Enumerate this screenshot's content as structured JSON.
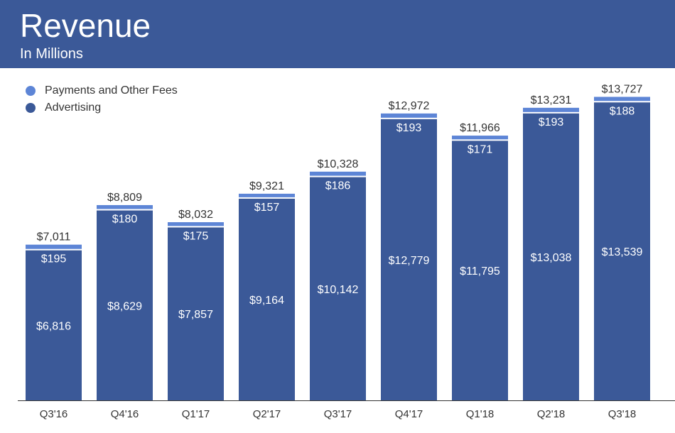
{
  "header": {
    "title": "Revenue",
    "subtitle": "In Millions"
  },
  "colors": {
    "header_bg": "#3b5998",
    "advertising": "#3b5998",
    "payments": "#5d85d6",
    "baseline": "#333333"
  },
  "chart_data": {
    "type": "bar",
    "stacked": true,
    "categories": [
      "Q3'16",
      "Q4'16",
      "Q1'17",
      "Q2'17",
      "Q3'17",
      "Q4'17",
      "Q1'18",
      "Q2'18",
      "Q3'18"
    ],
    "series": [
      {
        "name": "Advertising",
        "values": [
          6816,
          8629,
          7857,
          9164,
          10142,
          12779,
          11795,
          13038,
          13539
        ],
        "labels": [
          "$6,816",
          "$8,629",
          "$7,857",
          "$9,164",
          "$10,142",
          "$12,779",
          "$11,795",
          "$13,038",
          "$13,539"
        ]
      },
      {
        "name": "Payments and Other Fees",
        "values": [
          195,
          180,
          175,
          157,
          186,
          193,
          171,
          193,
          188
        ],
        "labels": [
          "$195",
          "$180",
          "$175",
          "$157",
          "$186",
          "$193",
          "$171",
          "$193",
          "$188"
        ]
      }
    ],
    "totals": [
      7011,
      8809,
      8032,
      9321,
      10328,
      12972,
      11966,
      13231,
      13727
    ],
    "total_labels": [
      "$7,011",
      "$8,809",
      "$8,032",
      "$9,321",
      "$10,328",
      "$12,972",
      "$11,966",
      "$13,231",
      "$13,727"
    ],
    "ylim": [
      0,
      14000
    ],
    "grid": false,
    "legend_position": "top-left"
  }
}
